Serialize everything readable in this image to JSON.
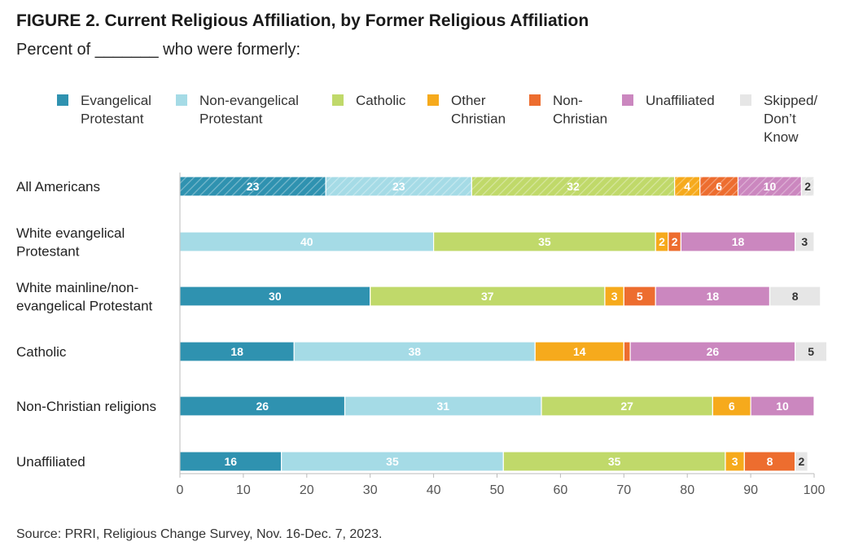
{
  "figure": {
    "title": "FIGURE 2.  Current Religious Affiliation, by Former Religious Affiliation",
    "subtitle": "Percent of _______ who were formerly:",
    "source": "Source: PRRI, Religious Change Survey, Nov. 16-Dec. 7, 2023."
  },
  "colors": {
    "evangelical": "#2f92b0",
    "non_evangelical": "#a5dbe6",
    "catholic": "#c0d96a",
    "other_christian": "#f6aa1c",
    "non_christian": "#ed6d2f",
    "unaffiliated": "#cb87bf",
    "skipped": "#e6e6e6"
  },
  "chart_data": {
    "type": "bar",
    "orientation": "horizontal",
    "stacked": true,
    "legend_position": "top",
    "grid": false,
    "xlim": [
      0,
      100
    ],
    "xticks": [
      0,
      10,
      20,
      30,
      40,
      50,
      60,
      70,
      80,
      90,
      100
    ],
    "categories": [
      [
        "All Americans"
      ],
      [
        "White evangelical",
        "Protestant"
      ],
      [
        "White mainline/non-",
        "evangelical Protestant"
      ],
      [
        "Catholic"
      ],
      [
        "Non-Christian religions"
      ],
      [
        "Unaffiliated"
      ]
    ],
    "hatched_category_index": 0,
    "series": [
      {
        "name": [
          "Evangelical",
          "Protestant"
        ],
        "key": "evangelical",
        "values": [
          23,
          null,
          30,
          18,
          26,
          16
        ]
      },
      {
        "name": [
          "Non-evangelical",
          "Protestant"
        ],
        "key": "non_evangelical",
        "values": [
          23,
          40,
          null,
          38,
          31,
          35
        ]
      },
      {
        "name": [
          "Catholic"
        ],
        "key": "catholic",
        "values": [
          32,
          35,
          37,
          null,
          27,
          35
        ]
      },
      {
        "name": [
          "Other",
          "Christian"
        ],
        "key": "other_christian",
        "values": [
          4,
          2,
          3,
          14,
          6,
          3
        ]
      },
      {
        "name": [
          "Non-",
          "Christian"
        ],
        "key": "non_christian",
        "values": [
          6,
          2,
          5,
          1,
          null,
          8
        ]
      },
      {
        "name": [
          "Unaffiliated"
        ],
        "key": "unaffiliated",
        "values": [
          10,
          18,
          18,
          26,
          10,
          null
        ]
      },
      {
        "name": [
          "Skipped/",
          "Don’t",
          "Know"
        ],
        "key": "skipped",
        "values": [
          2,
          3,
          8,
          5,
          null,
          2
        ]
      }
    ],
    "value_labels": [
      [
        "23",
        "23",
        "32",
        "4",
        "6",
        "10",
        "2"
      ],
      [
        "",
        "40",
        "35",
        "2",
        "2",
        "18",
        "3"
      ],
      [
        "30",
        "",
        "37",
        "3",
        "5",
        "18",
        "8"
      ],
      [
        "18",
        "38",
        "",
        "14",
        "",
        "26",
        "5"
      ],
      [
        "26",
        "31",
        "27",
        "6",
        "",
        "10",
        ""
      ],
      [
        "16",
        "35",
        "35",
        "3",
        "8",
        "",
        "2"
      ]
    ]
  }
}
